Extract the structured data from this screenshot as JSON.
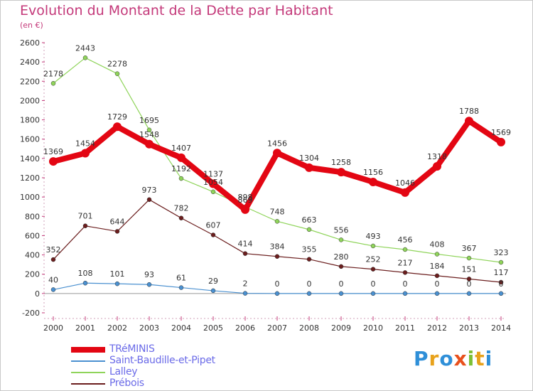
{
  "header": {
    "title": "Evolution du Montant de la Dette par Habitant",
    "subtitle": "(en €)"
  },
  "logo": {
    "text": "Proxiti",
    "letters": [
      {
        "ch": "P",
        "color": "#2f8fd8"
      },
      {
        "ch": "r",
        "color": "#e8a21c"
      },
      {
        "ch": "o",
        "color": "#2f8fd8"
      },
      {
        "ch": "x",
        "color": "#e8501c"
      },
      {
        "ch": "i",
        "color": "#7cc034"
      },
      {
        "ch": "t",
        "color": "#e8a21c"
      },
      {
        "ch": "i",
        "color": "#2f8fd8"
      }
    ]
  },
  "chart_data": {
    "type": "line",
    "title": "Evolution du Montant de la Dette par Habitant",
    "subtitle": "(en €)",
    "x": [
      "2000",
      "2001",
      "2002",
      "2003",
      "2004",
      "2005",
      "2006",
      "2007",
      "2008",
      "2009",
      "2010",
      "2011",
      "2012",
      "2013",
      "2014"
    ],
    "ylim": [
      -200,
      2600
    ],
    "yticks": [
      -200,
      0,
      200,
      400,
      600,
      800,
      1000,
      1200,
      1400,
      1600,
      1800,
      2000,
      2200,
      2400,
      2600
    ],
    "grid": false,
    "legend_position": "bottom-left",
    "series": [
      {
        "name": "TRéMINIS",
        "color": "#e30613",
        "values": [
          1369,
          1454,
          1729,
          1548,
          1407,
          1137,
          869,
          1456,
          1304,
          1258,
          1156,
          1046,
          1318,
          1788,
          1569
        ]
      },
      {
        "name": "Saint-Baudille-et-Pipet",
        "color": "#4a90d0",
        "values": [
          40,
          108,
          101,
          93,
          61,
          29,
          2,
          0,
          0,
          0,
          0,
          0,
          0,
          0,
          0
        ]
      },
      {
        "name": "Lalley",
        "color": "#8fd45a",
        "values": [
          2178,
          2443,
          2278,
          1695,
          1192,
          1054,
          898,
          748,
          663,
          556,
          493,
          456,
          408,
          367,
          323
        ]
      },
      {
        "name": "Prébois",
        "color": "#6b1e1e",
        "values": [
          352,
          701,
          644,
          973,
          782,
          607,
          414,
          384,
          355,
          280,
          252,
          217,
          184,
          151,
          117
        ]
      }
    ]
  }
}
